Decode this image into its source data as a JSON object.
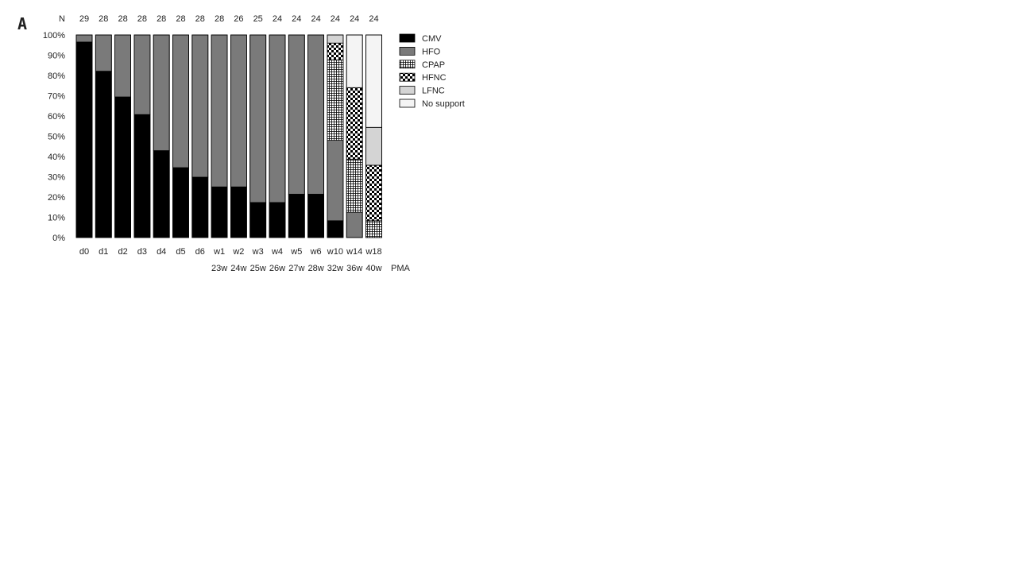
{
  "panel_label": "A",
  "n_label": "N",
  "pma_label": "PMA",
  "chart_data": {
    "type": "bar",
    "stacked": true,
    "title": "",
    "xlabel": "",
    "ylabel": "",
    "ylim": [
      0,
      100
    ],
    "y_ticks": [
      "0%",
      "10%",
      "20%",
      "30%",
      "40%",
      "50%",
      "60%",
      "70%",
      "80%",
      "90%",
      "100%"
    ],
    "categories": [
      "d0",
      "d1",
      "d2",
      "d3",
      "d4",
      "d5",
      "d6",
      "w1",
      "w2",
      "w3",
      "w4",
      "w5",
      "w6",
      "w10",
      "w14",
      "w18"
    ],
    "n_values": [
      29,
      28,
      28,
      28,
      28,
      28,
      28,
      28,
      26,
      25,
      24,
      24,
      24,
      24,
      24,
      24
    ],
    "pma_labels": [
      "",
      "",
      "",
      "",
      "",
      "",
      "",
      "23w",
      "24w",
      "25w",
      "26w",
      "27w",
      "28w",
      "32w",
      "36w",
      "40w"
    ],
    "legend_position": "right",
    "grid": false,
    "series": [
      {
        "name": "CMV",
        "pattern": "solid-black",
        "values": [
          96.5,
          82.1,
          69.4,
          60.7,
          42.9,
          34.5,
          29.8,
          25.0,
          25.0,
          17.3,
          17.3,
          21.4,
          21.4,
          8.3,
          0,
          0
        ]
      },
      {
        "name": "HFO",
        "pattern": "solid-gray",
        "values": [
          3.5,
          17.9,
          30.6,
          39.3,
          57.1,
          65.5,
          70.2,
          75.0,
          75.0,
          82.7,
          82.7,
          78.6,
          78.6,
          39.7,
          12.5,
          0
        ]
      },
      {
        "name": "CPAP",
        "pattern": "grid",
        "values": [
          0,
          0,
          0,
          0,
          0,
          0,
          0,
          0,
          0,
          0,
          0,
          0,
          0,
          39.7,
          26.2,
          8.3
        ]
      },
      {
        "name": "HFNC",
        "pattern": "checker",
        "values": [
          0,
          0,
          0,
          0,
          0,
          0,
          0,
          0,
          0,
          0,
          0,
          0,
          0,
          8.3,
          35.3,
          27.4
        ]
      },
      {
        "name": "LFNC",
        "pattern": "light-gray",
        "values": [
          0,
          0,
          0,
          0,
          0,
          0,
          0,
          0,
          0,
          0,
          0,
          0,
          0,
          4.0,
          0,
          18.7
        ]
      },
      {
        "name": "No support",
        "pattern": "near-white",
        "values": [
          0,
          0,
          0,
          0,
          0,
          0,
          0,
          0,
          0,
          0,
          0,
          0,
          0,
          0,
          26.0,
          45.6
        ]
      }
    ]
  }
}
